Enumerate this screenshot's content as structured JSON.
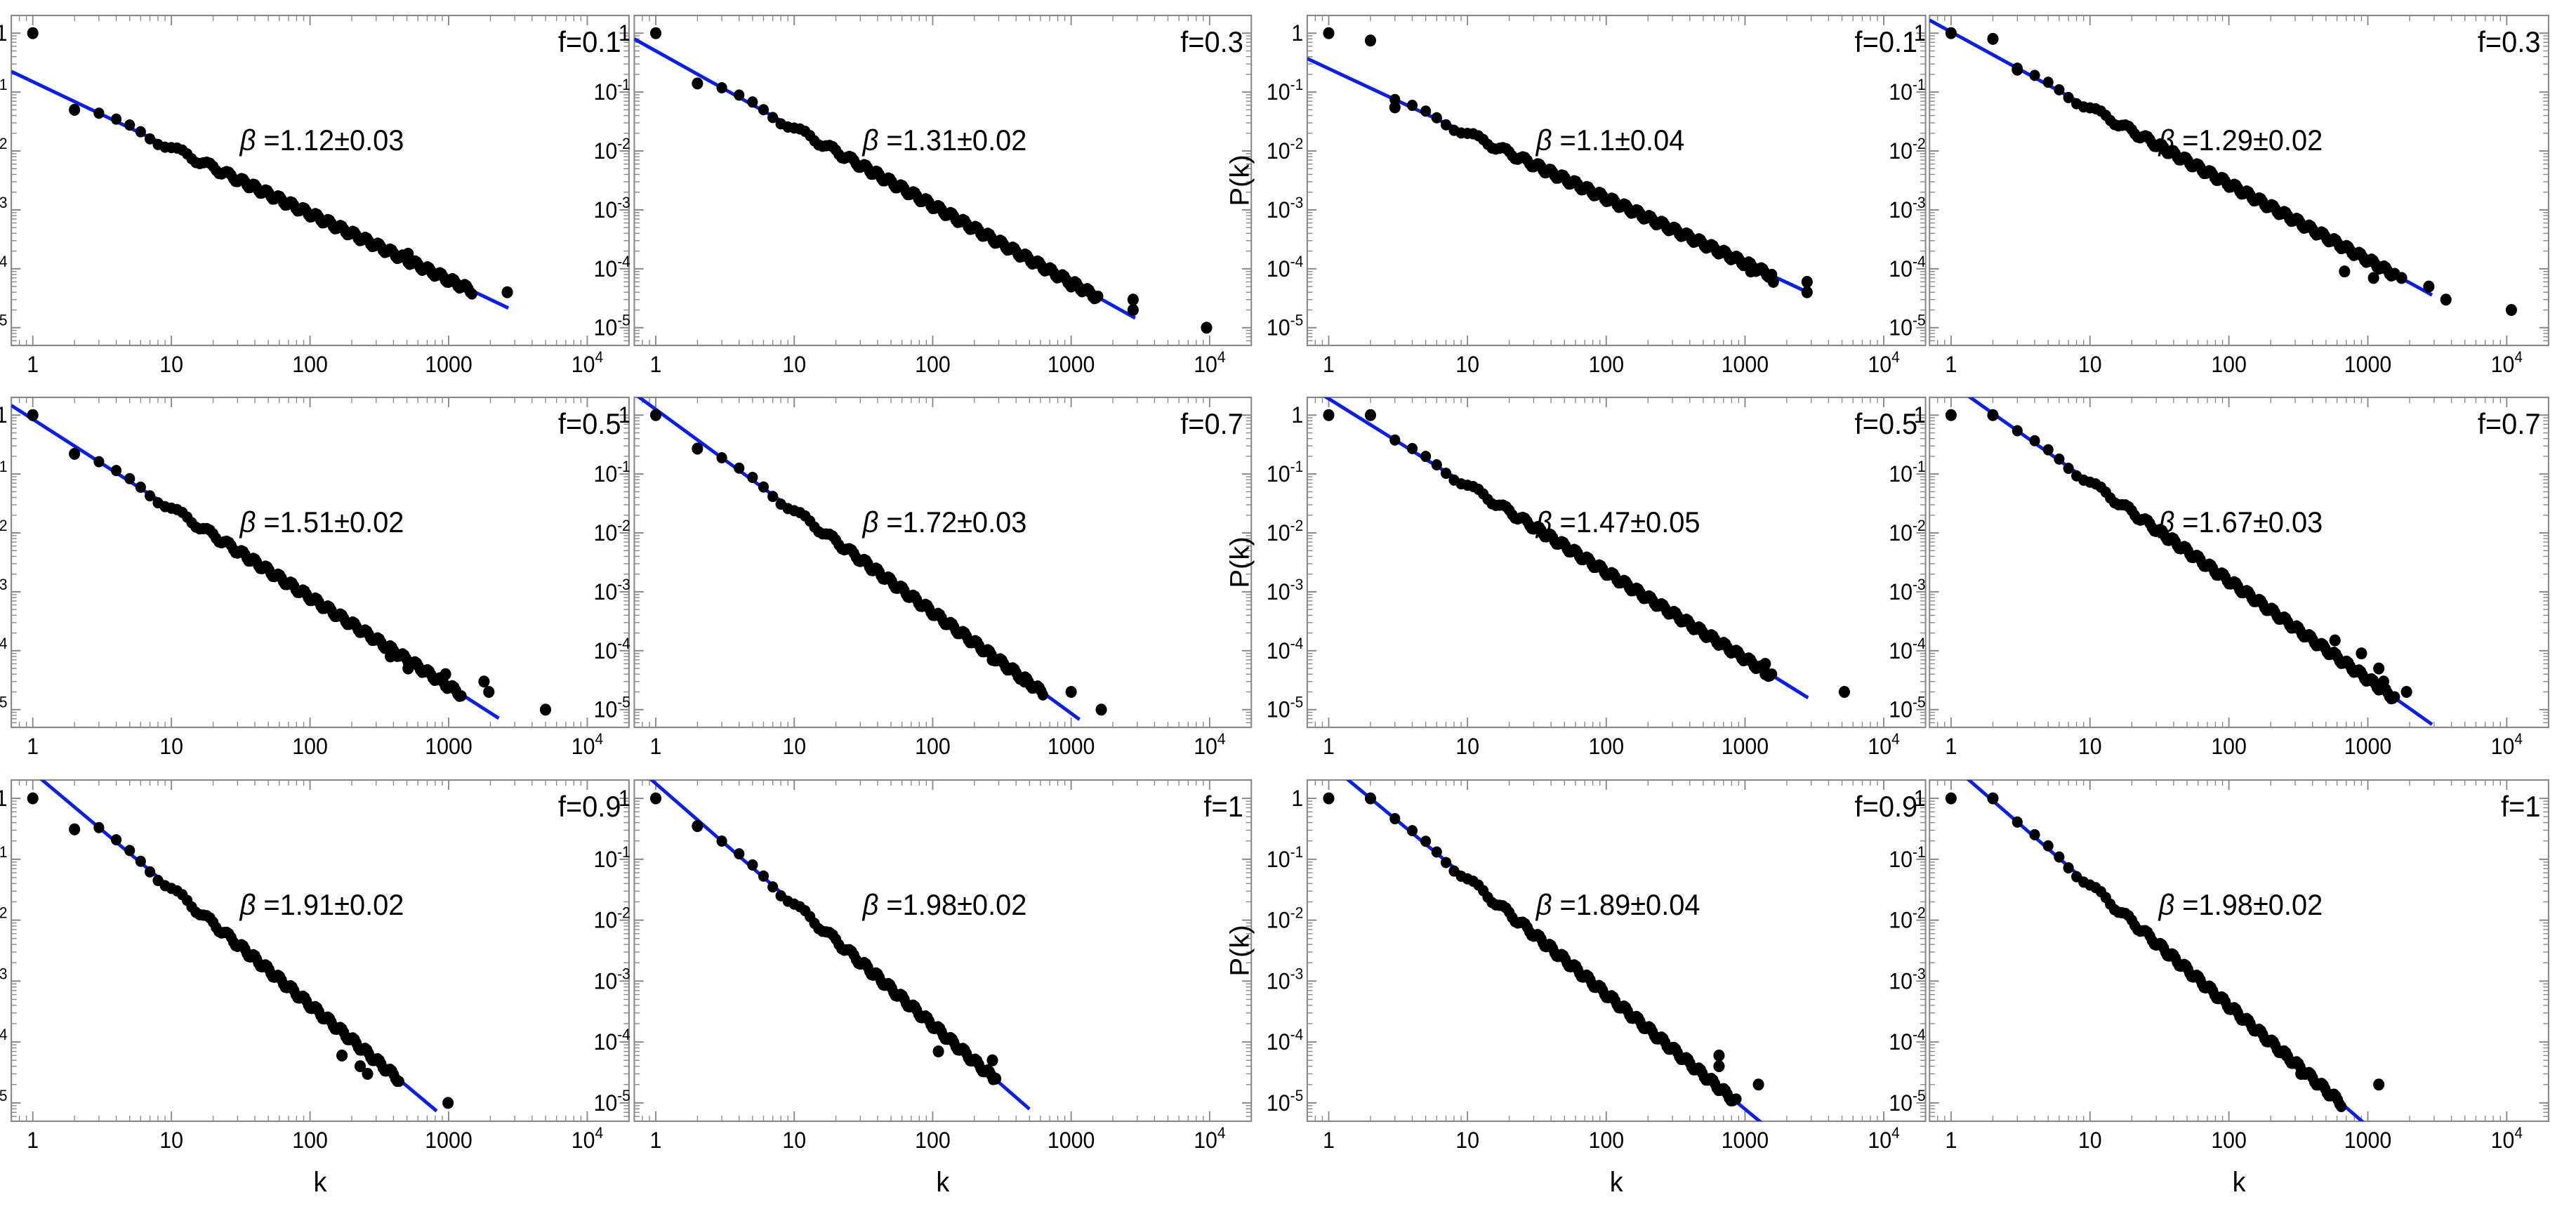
{
  "chart_data": {
    "type": "scatter",
    "scale": "log-log",
    "title": "",
    "xlabel": "k",
    "ylabel": "P(k)",
    "xlim": [
      0.7,
      20000
    ],
    "ylim": [
      5e-06,
      2
    ],
    "x_tick_labels": [
      {
        "value": 1,
        "base": "1",
        "exp": ""
      },
      {
        "value": 10,
        "base": "10",
        "exp": ""
      },
      {
        "value": 100,
        "base": "100",
        "exp": ""
      },
      {
        "value": 1000,
        "base": "1000",
        "exp": ""
      },
      {
        "value": 10000,
        "base": "10",
        "exp": "4"
      }
    ],
    "y_tick_labels": [
      {
        "value": 1,
        "base": "1",
        "exp": ""
      },
      {
        "value": 0.1,
        "base": "10",
        "exp": "-1"
      },
      {
        "value": 0.01,
        "base": "10",
        "exp": "-2"
      },
      {
        "value": 0.001,
        "base": "10",
        "exp": "-3"
      },
      {
        "value": 0.0001,
        "base": "10",
        "exp": "-4"
      },
      {
        "value": 1e-05,
        "base": "10",
        "exp": "-5"
      }
    ],
    "beta_symbol": "β",
    "series_colors": {
      "data": "#000000",
      "fit": "#0a1fe6"
    },
    "panels": [
      {
        "f_label": "f=0.1",
        "beta_text": "=1.12±0.03",
        "beta": 1.12,
        "fit_c": 0.15,
        "k_max": 2700,
        "outliers": [
          [
            1,
            1.0
          ],
          [
            2,
            0.05
          ],
          [
            510,
            0.00018
          ],
          [
            760,
            8.5e-05
          ],
          [
            1000,
            6e-05
          ],
          [
            2650,
            4e-05
          ]
        ]
      },
      {
        "f_label": "f=0.3",
        "beta_text": "=1.31±0.02",
        "beta": 1.31,
        "fit_c": 0.5,
        "k_max": 2900,
        "outliers": [
          [
            1,
            1.0
          ],
          [
            2,
            0.14
          ],
          [
            1000,
            5e-05
          ],
          [
            2800,
            3e-05
          ],
          [
            2800,
            2e-05
          ],
          [
            9500,
            1e-05
          ]
        ]
      },
      {
        "f_label": "f=0.1",
        "beta_text": "=1.1±0.04",
        "beta": 1.1,
        "fit_c": 0.25,
        "k_max": 2900,
        "outliers": [
          [
            1,
            1.0
          ],
          [
            2,
            0.75
          ],
          [
            3,
            0.055
          ],
          [
            1100,
            9e-05
          ],
          [
            1600,
            6e-05
          ],
          [
            2800,
            6e-05
          ],
          [
            2800,
            4e-05
          ]
        ]
      },
      {
        "f_label": "f=0.3",
        "beta_text": "=1.29±0.02",
        "beta": 1.29,
        "fit_c": 1.05,
        "k_max": 2900,
        "outliers": [
          [
            1,
            1.0
          ],
          [
            2,
            0.8
          ],
          [
            3,
            0.24
          ],
          [
            680,
            9e-05
          ],
          [
            1100,
            7e-05
          ],
          [
            1750,
            7e-05
          ],
          [
            2750,
            5e-05
          ],
          [
            3650,
            3e-05
          ],
          [
            10800,
            2e-05
          ]
        ]
      },
      {
        "f_label": "f=0.5",
        "beta_text": "=1.51±0.02",
        "beta": 1.51,
        "fit_c": 0.85,
        "k_max": 2300,
        "outliers": [
          [
            1,
            1.0
          ],
          [
            2,
            0.22
          ],
          [
            380,
            8e-05
          ],
          [
            510,
            5e-05
          ],
          [
            950,
            4e-05
          ],
          [
            1800,
            3e-05
          ],
          [
            1950,
            2e-05
          ],
          [
            5000,
            1e-05
          ]
        ]
      },
      {
        "f_label": "f=0.7",
        "beta_text": "=1.72±0.03",
        "beta": 1.72,
        "fit_c": 1.25,
        "k_max": 1150,
        "outliers": [
          [
            1,
            1.0
          ],
          [
            2,
            0.27
          ],
          [
            270,
            7e-05
          ],
          [
            350,
            5e-05
          ],
          [
            460,
            3e-05
          ],
          [
            1000,
            2e-05
          ],
          [
            1650,
            1e-05
          ]
        ]
      },
      {
        "f_label": "f=0.5",
        "beta_text": "=1.47±0.05",
        "beta": 1.47,
        "fit_c": 1.9,
        "k_max": 2850,
        "outliers": [
          [
            1,
            1.0
          ],
          [
            2,
            1.0
          ],
          [
            1400,
            6e-05
          ],
          [
            1400,
            4e-05
          ],
          [
            5200,
            2e-05
          ]
        ]
      },
      {
        "f_label": "f=0.7",
        "beta_text": "=1.67±0.03",
        "beta": 1.67,
        "fit_c": 3.4,
        "k_max": 2900,
        "outliers": [
          [
            1,
            1.0
          ],
          [
            2,
            1.0
          ],
          [
            580,
            0.00015
          ],
          [
            900,
            9e-05
          ],
          [
            1200,
            5e-05
          ],
          [
            1300,
            3e-05
          ],
          [
            1900,
            2e-05
          ]
        ]
      },
      {
        "f_label": "f=0.9",
        "beta_text": "=1.91±0.02",
        "beta": 1.91,
        "fit_c": 2.7,
        "k_max": 820,
        "outliers": [
          [
            1,
            1.0
          ],
          [
            2,
            0.31
          ],
          [
            170,
            6e-05
          ],
          [
            230,
            4e-05
          ],
          [
            260,
            3e-05
          ],
          [
            990,
            1e-05
          ]
        ]
      },
      {
        "f_label": "f=1",
        "beta_text": "=1.98±0.02",
        "beta": 1.98,
        "fit_c": 1.75,
        "k_max": 500,
        "outliers": [
          [
            1,
            1.0
          ],
          [
            2,
            0.35
          ],
          [
            110,
            7e-05
          ],
          [
            270,
            5e-05
          ],
          [
            285,
            2.5e-05
          ]
        ]
      },
      {
        "f_label": "f=0.9",
        "beta_text": "=1.89±0.04",
        "beta": 1.89,
        "fit_c": 3.7,
        "k_max": 1600,
        "outliers": [
          [
            1,
            1.0
          ],
          [
            2,
            1.0
          ],
          [
            300,
            8e-05
          ],
          [
            650,
            6e-05
          ],
          [
            650,
            4e-05
          ],
          [
            1250,
            2e-05
          ]
        ]
      },
      {
        "f_label": "f=1",
        "beta_text": "=1.98±0.02",
        "beta": 1.98,
        "fit_c": 3.6,
        "k_max": 1200,
        "outliers": [
          [
            1,
            1.0
          ],
          [
            2,
            1.0
          ],
          [
            260,
            6e-05
          ],
          [
            330,
            3e-05
          ],
          [
            1200,
            2e-05
          ]
        ]
      }
    ]
  }
}
